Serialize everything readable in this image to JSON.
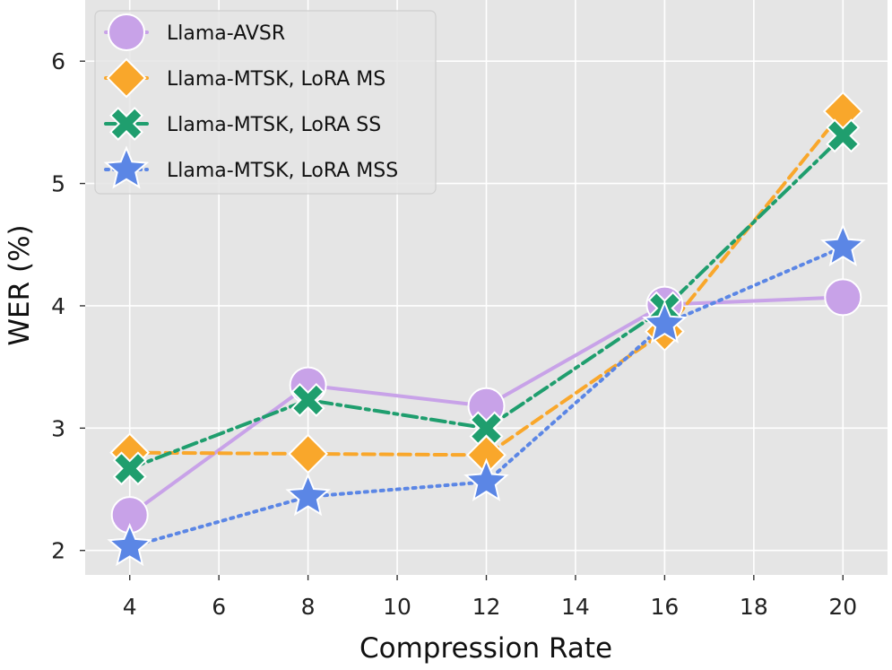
{
  "chart_data": {
    "type": "line",
    "title": "",
    "xlabel": "Compression Rate",
    "ylabel": "WER (%)",
    "xlim": [
      3,
      21
    ],
    "ylim": [
      1.8,
      6.5
    ],
    "xticks": [
      4,
      6,
      8,
      10,
      12,
      14,
      16,
      18,
      20
    ],
    "yticks": [
      2,
      3,
      4,
      5,
      6
    ],
    "grid": true,
    "legend_position": "top-left",
    "x": [
      4,
      8,
      12,
      16,
      20
    ],
    "series": [
      {
        "name": "Llama-AVSR",
        "values": [
          2.29,
          3.35,
          3.18,
          4.01,
          4.07
        ],
        "color": "#C8A2E8",
        "marker": "circle",
        "dash": "solid"
      },
      {
        "name": "Llama-MTSK, LoRA MS",
        "values": [
          2.8,
          2.79,
          2.78,
          3.79,
          5.59
        ],
        "color": "#F9A72B",
        "marker": "diamond",
        "dash": "dashed"
      },
      {
        "name": "Llama-MTSK, LoRA SS",
        "values": [
          2.67,
          3.23,
          3.0,
          3.98,
          5.39
        ],
        "color": "#1F9E6E",
        "marker": "x",
        "dash": "dashdot"
      },
      {
        "name": "Llama-MTSK, LoRA MSS",
        "values": [
          2.03,
          2.44,
          2.56,
          3.85,
          4.48
        ],
        "color": "#5B86E5",
        "marker": "star",
        "dash": "dotted"
      }
    ]
  }
}
